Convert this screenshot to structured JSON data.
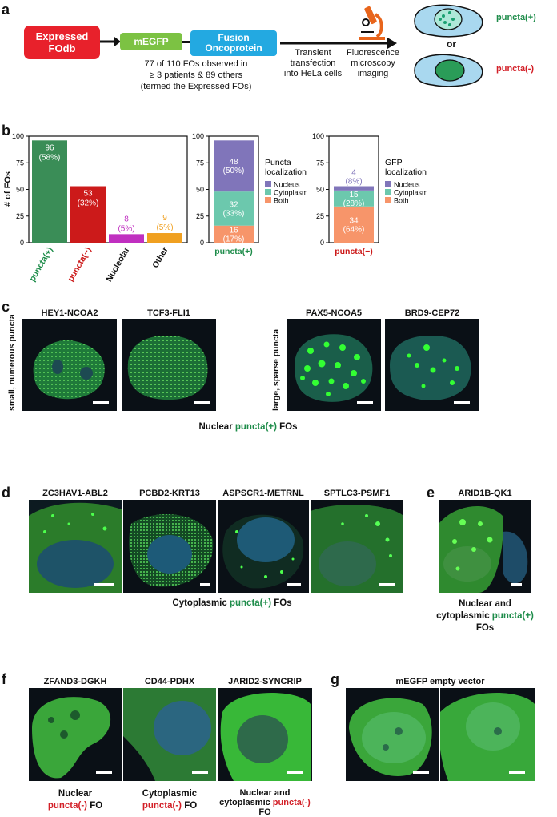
{
  "panel_a": {
    "label": "a",
    "box1": "Expressed FOdb",
    "box2": "mEGFP",
    "box3": "Fusion Oncoprotein",
    "note1": "77 of 110 FOs observed in",
    "note2": "≥ 3 patients & 89 others",
    "note3": "(termed the Expressed FOs)",
    "step1a": "Transient",
    "step1b": "transfection",
    "step1c": "into HeLa cells",
    "step2a": "Fluorescence",
    "step2b": "microscopy",
    "step2c": "imaging",
    "or": "or",
    "pos": "puncta(+)",
    "neg": "puncta(-)",
    "colors": {
      "red": "#e8212b",
      "green": "#7cc243",
      "blue": "#23a9e1",
      "cell": "#a9d8ef"
    }
  },
  "panel_b": {
    "label": "b",
    "ylabel": "# of FOs",
    "chart_data": [
      {
        "type": "bar",
        "categories": [
          "puncta(+)",
          "puncta(−)",
          "Nucleolar",
          "Other"
        ],
        "values": [
          96,
          53,
          8,
          9
        ],
        "labels": [
          "96",
          "(58%)",
          "53",
          "(32%)",
          "8",
          "(5%)",
          "9",
          "(5%)"
        ],
        "colors": [
          "#3a8d57",
          "#cc1a1a",
          "#c02fc0",
          "#f0a020"
        ],
        "ylim": [
          0,
          100
        ],
        "yticks": [
          "0",
          "25",
          "50",
          "75",
          "100"
        ]
      },
      {
        "type": "bar",
        "categories": [
          "puncta(+)"
        ],
        "series": [
          {
            "name": "Both",
            "values": [
              16
            ]
          },
          {
            "name": "Cytoplasm",
            "values": [
              32
            ]
          },
          {
            "name": "Nucleus",
            "values": [
              48
            ]
          }
        ],
        "seglabels": [
          [
            "16",
            "(17%)"
          ],
          [
            "32",
            "(33%)"
          ],
          [
            "48",
            "(50%)"
          ]
        ],
        "colors": [
          "#f7956a",
          "#6cc8ad",
          "#8075ba"
        ],
        "legend_title": [
          "Puncta",
          "localization"
        ],
        "ylim": [
          0,
          100
        ],
        "yticks": [
          "0",
          "25",
          "50",
          "75",
          "100"
        ]
      },
      {
        "type": "bar",
        "categories": [
          "puncta(−)"
        ],
        "series": [
          {
            "name": "Both",
            "values": [
              34
            ]
          },
          {
            "name": "Cytoplasm",
            "values": [
              15
            ]
          },
          {
            "name": "Nucleus",
            "values": [
              4
            ]
          }
        ],
        "seglabels": [
          [
            "34",
            "(64%)"
          ],
          [
            "15",
            "(28%)"
          ],
          [
            "4",
            "(8%)"
          ]
        ],
        "colors": [
          "#f7956a",
          "#6cc8ad",
          "#8075ba"
        ],
        "legend_title": [
          "GFP",
          "localization"
        ],
        "ylim": [
          0,
          100
        ],
        "yticks": [
          "0",
          "25",
          "50",
          "75",
          "100"
        ]
      }
    ]
  },
  "panel_c": {
    "label": "c",
    "left_side": "small, numerous puncta",
    "right_side": "large, sparse puncta",
    "t1": "HEY1-NCOA2",
    "t2": "TCF3-FLI1",
    "t3": "PAX5-NCOA5",
    "t4": "BRD9-CEP72",
    "cap_a": "Nuclear ",
    "cap_b": "puncta(+)",
    "cap_c": " FOs"
  },
  "panel_d": {
    "label": "d",
    "t1": "ZC3HAV1-ABL2",
    "t2": "PCBD2-KRT13",
    "t3": "ASPSCR1-METRNL",
    "t4": "SPTLC3-PSMF1",
    "cap_a": "Cytoplasmic ",
    "cap_b": "puncta(+)",
    "cap_c": " FOs"
  },
  "panel_e": {
    "label": "e",
    "t1": "ARID1B-QK1",
    "cap1": "Nuclear and",
    "cap2a": "cytoplasmic ",
    "cap2b": "puncta(+)",
    "cap3": "FOs"
  },
  "panel_f": {
    "label": "f",
    "t1": "ZFAND3-DGKH",
    "t2": "CD44-PDHX",
    "t3": "JARID2-SYNCRIP",
    "c1a": "Nuclear",
    "c1b": "puncta(-)",
    "c1c": " FO",
    "c2a": "Cytoplasmic",
    "c2b": "puncta(-)",
    "c2c": " FO",
    "c3a": "Nuclear and",
    "c3b": "cytoplasmic ",
    "c3c": "puncta(-)",
    "c3d": "FO"
  },
  "panel_g": {
    "label": "g",
    "t1": "mEGFP empty vector"
  }
}
